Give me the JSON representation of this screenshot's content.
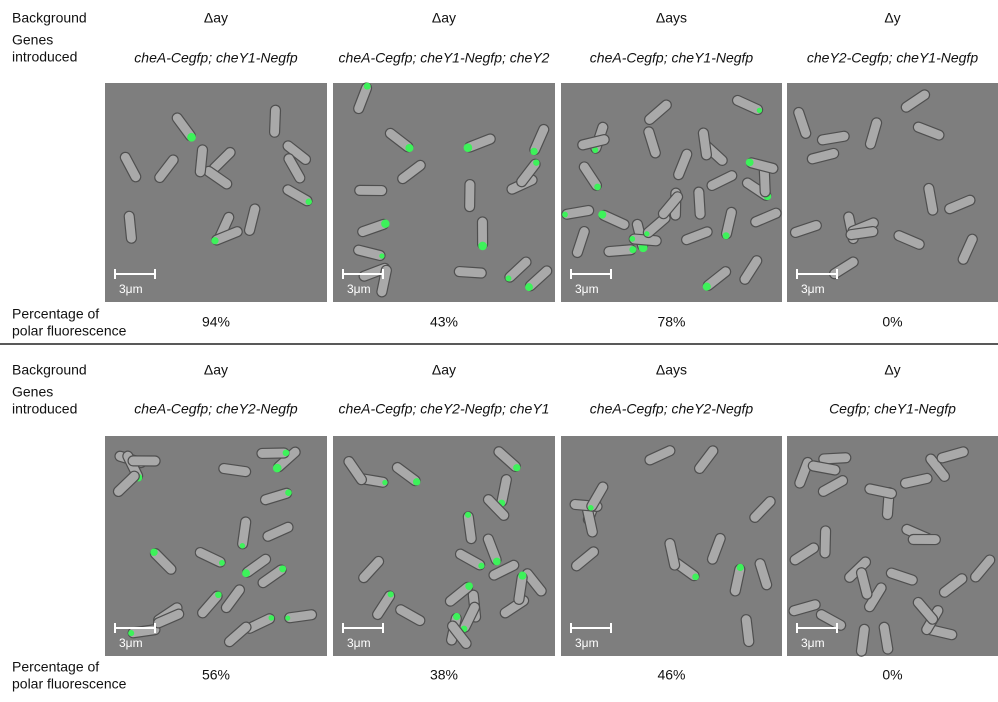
{
  "panels": [
    {
      "background_label": "Background",
      "genes_label": [
        "Genes",
        "introduced"
      ],
      "percentage_label": [
        "Percentage of",
        "polar fluorescence"
      ],
      "columns": [
        {
          "background": "Δay",
          "genes": "cheA-Cegfp; cheY1-Negfp",
          "scale": "3μm",
          "percentage": "94%"
        },
        {
          "background": "Δay",
          "genes": "cheA-Cegfp; cheY1-Negfp; cheY2",
          "scale": "3μm",
          "percentage": "43%"
        },
        {
          "background": "Δays",
          "genes": "cheA-Cegfp; cheY1-Negfp",
          "scale": "3μm",
          "percentage": "78%"
        },
        {
          "background": "Δy",
          "genes": "cheY2-Cegfp; cheY1-Negfp",
          "scale": "3μm",
          "percentage": "0%"
        }
      ]
    },
    {
      "background_label": "Background",
      "genes_label": [
        "Genes",
        "introduced"
      ],
      "percentage_label": [
        "Percentage of",
        "polar fluorescence"
      ],
      "columns": [
        {
          "background": "Δay",
          "genes": "cheA-Cegfp; cheY2-Negfp",
          "scale": "3μm",
          "percentage": "56%"
        },
        {
          "background": "Δay",
          "genes": "cheA-Cegfp; cheY2-Negfp; cheY1",
          "scale": "3μm",
          "percentage": "38%"
        },
        {
          "background": "Δays",
          "genes": "cheA-Cegfp; cheY2-Negfp",
          "scale": "3μm",
          "percentage": "46%"
        },
        {
          "background": "Δy",
          "genes": "Cegfp; cheY1-Negfp",
          "scale": "3μm",
          "percentage": "0%"
        }
      ]
    }
  ]
}
